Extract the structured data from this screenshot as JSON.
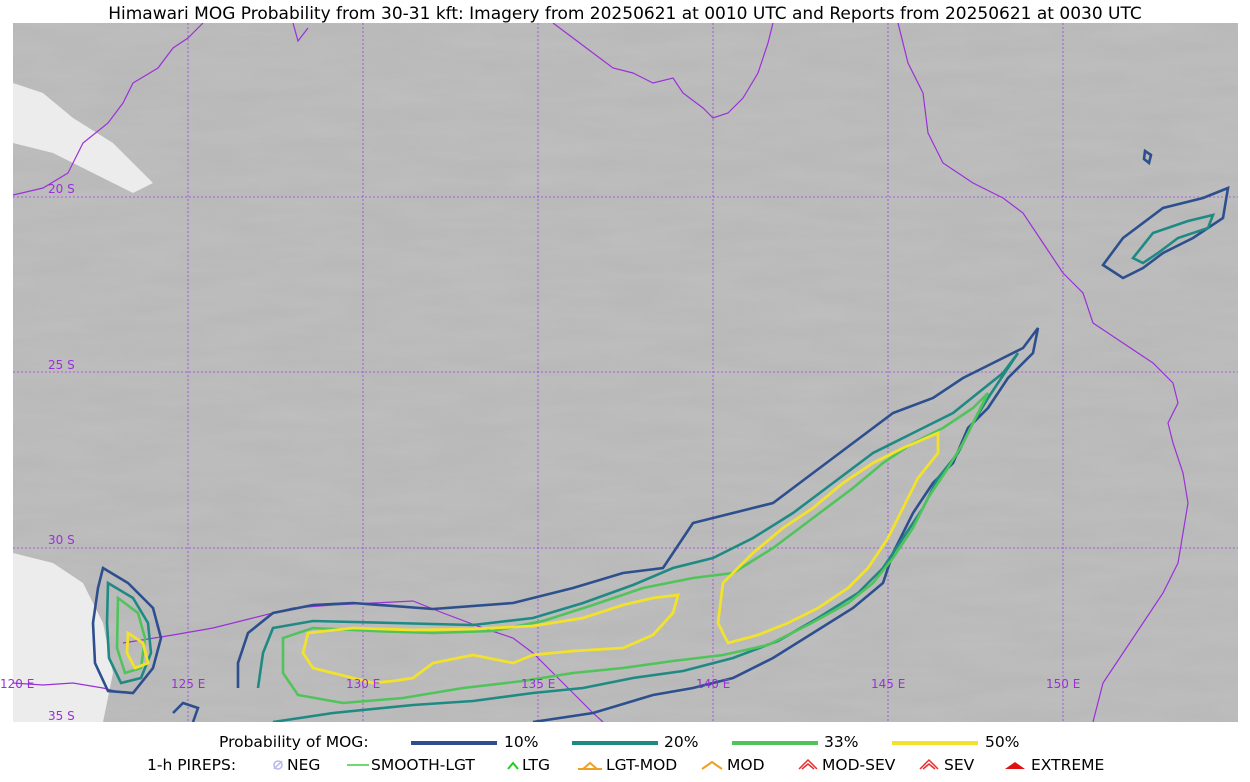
{
  "title": "Himawari MOG Probability from 30-31 kft: Imagery from 20250621 at 0010 UTC and Reports from 20250621 at 0030 UTC",
  "map": {
    "lat_labels": [
      "20 S",
      "25 S",
      "30 S",
      "35 S"
    ],
    "lon_labels": [
      "120 E",
      "125 E",
      "130 E",
      "135 E",
      "140 E",
      "145 E",
      "150 E"
    ],
    "contour_levels": [
      {
        "label": "10%",
        "color": "#2d4f8e"
      },
      {
        "label": "20%",
        "color": "#1f8a83"
      },
      {
        "label": "33%",
        "color": "#50c45a"
      },
      {
        "label": "50%",
        "color": "#f2e22c"
      }
    ],
    "coastline_color": "#9b30d9",
    "gridline_color": "#a040e0"
  },
  "legend": {
    "prob_title": "Probability of MOG:",
    "prob_items": [
      "10%",
      "20%",
      "33%",
      "50%"
    ],
    "pirep_title": "1-h PIREPS:",
    "pirep_items": [
      {
        "label": "NEG",
        "icon": "circle-slash-icon",
        "color": "#b8b8f0"
      },
      {
        "label": "SMOOTH-LGT",
        "icon": "line-icon",
        "color": "#44cc44"
      },
      {
        "label": "LTG",
        "icon": "caret-icon",
        "color": "#22cc22"
      },
      {
        "label": "LGT-MOD",
        "icon": "caret-bar-icon",
        "color": "#f0a020"
      },
      {
        "label": "MOD",
        "icon": "caret-icon",
        "color": "#f0a020"
      },
      {
        "label": "MOD-SEV",
        "icon": "double-caret-icon",
        "color": "#e83030"
      },
      {
        "label": "SEV",
        "icon": "double-caret-icon",
        "color": "#e83030"
      },
      {
        "label": "EXTREME",
        "icon": "filled-caret-icon",
        "color": "#e01010"
      }
    ]
  }
}
